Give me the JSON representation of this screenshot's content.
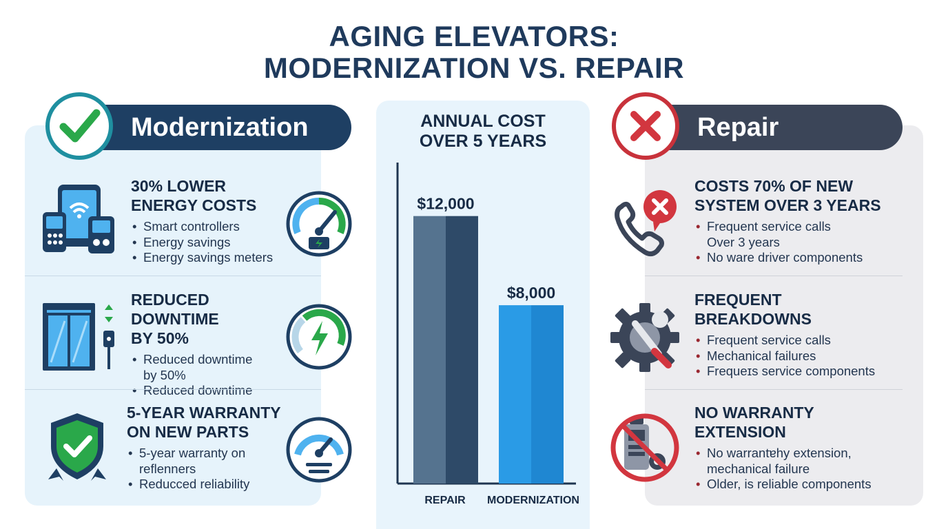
{
  "title": {
    "line1": "AGING ELEVATORS:",
    "line2": "MODERNIZATION VS. REPAIR"
  },
  "modernization": {
    "header": "Modernization",
    "badge_icon": "checkmark-icon",
    "sections": [
      {
        "heading_lines": [
          "30% LOWER",
          "ENERGY COSTS"
        ],
        "bullets": [
          "Smart controllers",
          "Energy savings",
          "Energy savings meters"
        ],
        "icon": "smart-devices-icon",
        "gauge_icon": "energy-gauge-icon"
      },
      {
        "heading_lines": [
          "REDUCED DOWNTIME",
          "BY 50%"
        ],
        "bullets": [
          "Reduced downtime",
          "by 50%",
          "Reduced downtime"
        ],
        "icon": "elevator-icon",
        "gauge_icon": "lightning-gauge-icon"
      },
      {
        "heading_lines": [
          "5-YEAR WARRANTY",
          "ON NEW PARTS"
        ],
        "bullets": [
          "5-year warranty on",
          "reflenners",
          "Reducced reliability"
        ],
        "icon": "shield-check-icon",
        "gauge_icon": "speedometer-icon"
      }
    ]
  },
  "repair": {
    "header": "Repair",
    "badge_icon": "x-mark-icon",
    "sections": [
      {
        "heading_lines": [
          "COSTS 70% OF NEW",
          "SYSTEM OVER 3 YEARS"
        ],
        "bullets": [
          "Frequent service calls",
          "Over 3 years",
          "No ware driver components"
        ],
        "icon": "phone-x-icon"
      },
      {
        "heading_lines": [
          "FREQUENT",
          "BREAKDOWNS"
        ],
        "bullets": [
          "Frequent service calls",
          "Mechanical failures",
          "Frequeɪs service components"
        ],
        "icon": "gear-wrench-icon"
      },
      {
        "heading_lines": [
          "NO WARRANTY",
          "EXTENSION"
        ],
        "bullets": [
          "No warrantɐhy extension,",
          "mechanical failure",
          "Older, is reliable components"
        ],
        "icon": "no-warranty-icon"
      }
    ]
  },
  "chart_data": {
    "type": "bar",
    "title_lines": [
      "ANNUAL COST",
      "OVER 5 YEARS"
    ],
    "categories": [
      "REPAIR",
      "MODERNIZATION"
    ],
    "values": [
      12000,
      8000
    ],
    "value_labels": [
      "$12,000",
      "$8,000"
    ],
    "ylim": [
      0,
      14400
    ],
    "grid": false,
    "colors": [
      "#55738f",
      "#2a9be6"
    ]
  }
}
